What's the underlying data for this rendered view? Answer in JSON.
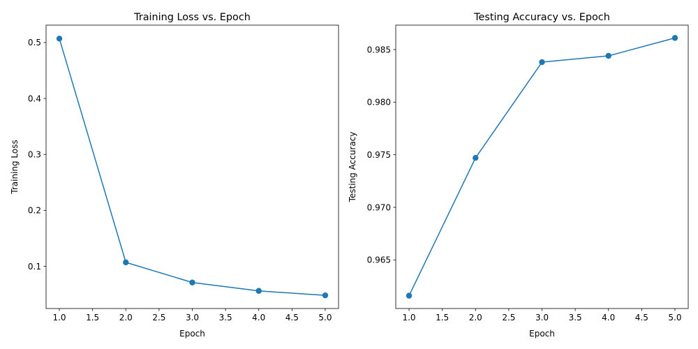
{
  "chart_data": [
    {
      "type": "line",
      "title": "Training Loss vs. Epoch",
      "xlabel": "Epoch",
      "ylabel": "Training Loss",
      "x": [
        1,
        2,
        3,
        4,
        5
      ],
      "series": [
        {
          "values": [
            0.507,
            0.107,
            0.071,
            0.056,
            0.048
          ],
          "color": "#1f77b4",
          "marker": "circle"
        }
      ],
      "xlim": [
        0.8,
        5.2
      ],
      "ylim": [
        0.0245,
        0.5311
      ],
      "xticks": [
        1.0,
        1.5,
        2.0,
        2.5,
        3.0,
        3.5,
        4.0,
        4.5,
        5.0
      ],
      "xtick_labels": [
        "1.0",
        "1.5",
        "2.0",
        "2.5",
        "3.0",
        "3.5",
        "4.0",
        "4.5",
        "5.0"
      ],
      "yticks": [
        0.1,
        0.2,
        0.3,
        0.4,
        0.5
      ],
      "ytick_labels": [
        "0.1",
        "0.2",
        "0.3",
        "0.4",
        "0.5"
      ],
      "grid": false,
      "legend": null
    },
    {
      "type": "line",
      "title": "Testing Accuracy vs. Epoch",
      "xlabel": "Epoch",
      "ylabel": "Testing Accuracy",
      "x": [
        1,
        2,
        3,
        4,
        5
      ],
      "series": [
        {
          "values": [
            0.9616,
            0.9747,
            0.9838,
            0.9844,
            0.9861
          ],
          "color": "#1f77b4",
          "marker": "circle"
        }
      ],
      "xlim": [
        0.8,
        5.2
      ],
      "ylim": [
        0.96038,
        0.98732
      ],
      "xticks": [
        1.0,
        1.5,
        2.0,
        2.5,
        3.0,
        3.5,
        4.0,
        4.5,
        5.0
      ],
      "xtick_labels": [
        "1.0",
        "1.5",
        "2.0",
        "2.5",
        "3.0",
        "3.5",
        "4.0",
        "4.5",
        "5.0"
      ],
      "yticks": [
        0.965,
        0.97,
        0.975,
        0.98,
        0.985
      ],
      "ytick_labels": [
        "0.965",
        "0.970",
        "0.975",
        "0.980",
        "0.985"
      ],
      "grid": false,
      "legend": null
    }
  ]
}
